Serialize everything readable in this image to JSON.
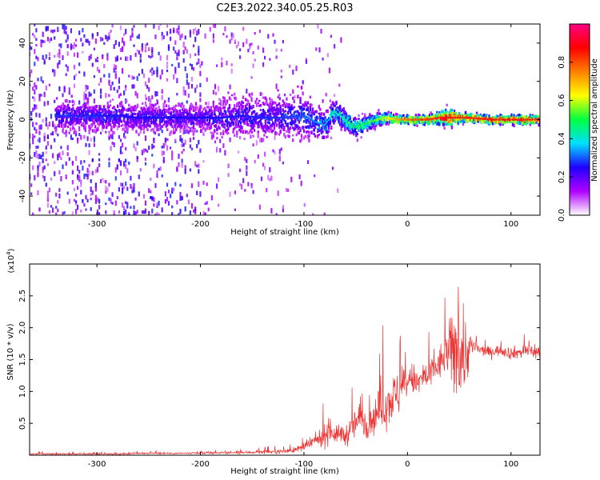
{
  "title": "C2E3.2022.340.05.25.R03",
  "chart_data": [
    {
      "type": "heatmap",
      "xlabel": "Height of straight line (km)",
      "ylabel": "Frequency (Hz)",
      "xlim": [
        -365,
        128
      ],
      "ylim": [
        -50,
        50
      ],
      "xticks": [
        -300,
        -200,
        -100,
        0,
        100
      ],
      "xtick_labels": [
        "-300",
        "-200",
        "-100",
        "0",
        "100"
      ],
      "yticks": [
        -40,
        -20,
        0,
        20,
        40
      ],
      "ytick_labels": [
        "-40",
        "-20",
        "0",
        "20",
        "40"
      ],
      "colorbar": {
        "label": "Normalized spectral amplitude",
        "range": [
          0,
          1
        ],
        "ticks": [
          0.0,
          0.2,
          0.4,
          0.6,
          0.8
        ],
        "tick_labels": [
          "0.0",
          "0.2",
          "0.4",
          "0.6",
          "0.8"
        ],
        "colors": [
          "#ffffff",
          "#b000ff",
          "#2000ff",
          "#00e0ff",
          "#00ff40",
          "#ffff00",
          "#ff8000",
          "#ff0000",
          "#ff0080"
        ]
      },
      "ridge": {
        "x": [
          -340,
          -320,
          -300,
          -280,
          -260,
          -240,
          -220,
          -200,
          -180,
          -160,
          -140,
          -120,
          -100,
          -90,
          -80,
          -70,
          -60,
          -50,
          -40,
          -30,
          -20,
          -10,
          0,
          10,
          20,
          30,
          40,
          50,
          60,
          80,
          100,
          128
        ],
        "freq": [
          2,
          2,
          2,
          2,
          1,
          1,
          1,
          1,
          1,
          2,
          1,
          1,
          2,
          -1,
          -3,
          4,
          0,
          -4,
          -2,
          0,
          1,
          0,
          0,
          0,
          0,
          1,
          1,
          1,
          1,
          0,
          0,
          0
        ],
        "amplitude": [
          0.28,
          0.27,
          0.27,
          0.26,
          0.25,
          0.26,
          0.25,
          0.25,
          0.26,
          0.26,
          0.27,
          0.28,
          0.3,
          0.32,
          0.35,
          0.42,
          0.45,
          0.48,
          0.5,
          0.55,
          0.6,
          0.72,
          0.78,
          0.82,
          0.84,
          0.85,
          0.86,
          0.85,
          0.86,
          0.87,
          0.87,
          0.86
        ],
        "halfwidth": [
          7,
          7,
          7,
          7,
          7,
          7,
          7,
          6,
          10,
          11,
          10,
          10,
          11,
          9,
          8,
          6,
          5,
          5,
          4,
          3,
          3,
          2,
          2,
          2,
          2,
          3,
          5,
          3,
          2,
          2,
          2,
          2
        ]
      }
    },
    {
      "type": "line",
      "xlabel": "Height of straight line (km)",
      "ylabel": "SNR (10 * v/v)",
      "yscale_label": "(x10",
      "yscale_exp": "4",
      "yscale_close": ")",
      "xlim": [
        -365,
        128
      ],
      "ylim": [
        0,
        3.0
      ],
      "xticks": [
        -300,
        -200,
        -100,
        0,
        100
      ],
      "xtick_labels": [
        "-300",
        "-200",
        "-100",
        "0",
        "100"
      ],
      "yticks": [
        0.5,
        1.0,
        1.5,
        2.0,
        2.5
      ],
      "ytick_labels": [
        "0.5",
        "1.0",
        "1.5",
        "2.0",
        "2.5"
      ],
      "color": "#ee3333",
      "series": [
        {
          "x": [
            -365,
            -340,
            -320,
            -300,
            -280,
            -260,
            -240,
            -220,
            -200,
            -180,
            -160,
            -140,
            -120,
            -110,
            -100,
            -90,
            -80,
            -75,
            -70,
            -65,
            -60,
            -55,
            -50,
            -45,
            -40,
            -35,
            -30,
            -25,
            -20,
            -15,
            -10,
            -5,
            0,
            5,
            10,
            15,
            20,
            25,
            30,
            35,
            40,
            45,
            50,
            55,
            60,
            65,
            70,
            80,
            90,
            100,
            110,
            120,
            128
          ],
          "y": [
            0.02,
            0.02,
            0.02,
            0.02,
            0.02,
            0.03,
            0.03,
            0.03,
            0.03,
            0.04,
            0.04,
            0.05,
            0.06,
            0.08,
            0.12,
            0.22,
            0.3,
            0.45,
            0.3,
            0.35,
            0.3,
            0.4,
            0.5,
            0.6,
            0.5,
            0.55,
            0.65,
            0.75,
            0.8,
            0.9,
            0.95,
            1.05,
            1.15,
            1.2,
            1.1,
            1.25,
            1.2,
            1.35,
            1.4,
            1.55,
            1.65,
            1.6,
            1.7,
            1.55,
            1.7,
            1.7,
            1.65,
            1.62,
            1.65,
            1.6,
            1.62,
            1.65,
            1.6
          ],
          "noise": [
            0.015,
            0.015,
            0.015,
            0.015,
            0.015,
            0.015,
            0.015,
            0.015,
            0.02,
            0.02,
            0.025,
            0.03,
            0.04,
            0.05,
            0.08,
            0.12,
            0.2,
            0.3,
            0.15,
            0.18,
            0.2,
            0.25,
            0.3,
            0.3,
            0.28,
            0.3,
            0.35,
            0.4,
            0.45,
            0.45,
            0.45,
            0.4,
            0.3,
            0.3,
            0.3,
            0.3,
            0.3,
            0.3,
            0.3,
            0.4,
            0.5,
            0.9,
            0.9,
            0.9,
            0.3,
            0.15,
            0.1,
            0.1,
            0.1,
            0.12,
            0.12,
            0.15,
            0.18
          ]
        }
      ]
    }
  ]
}
